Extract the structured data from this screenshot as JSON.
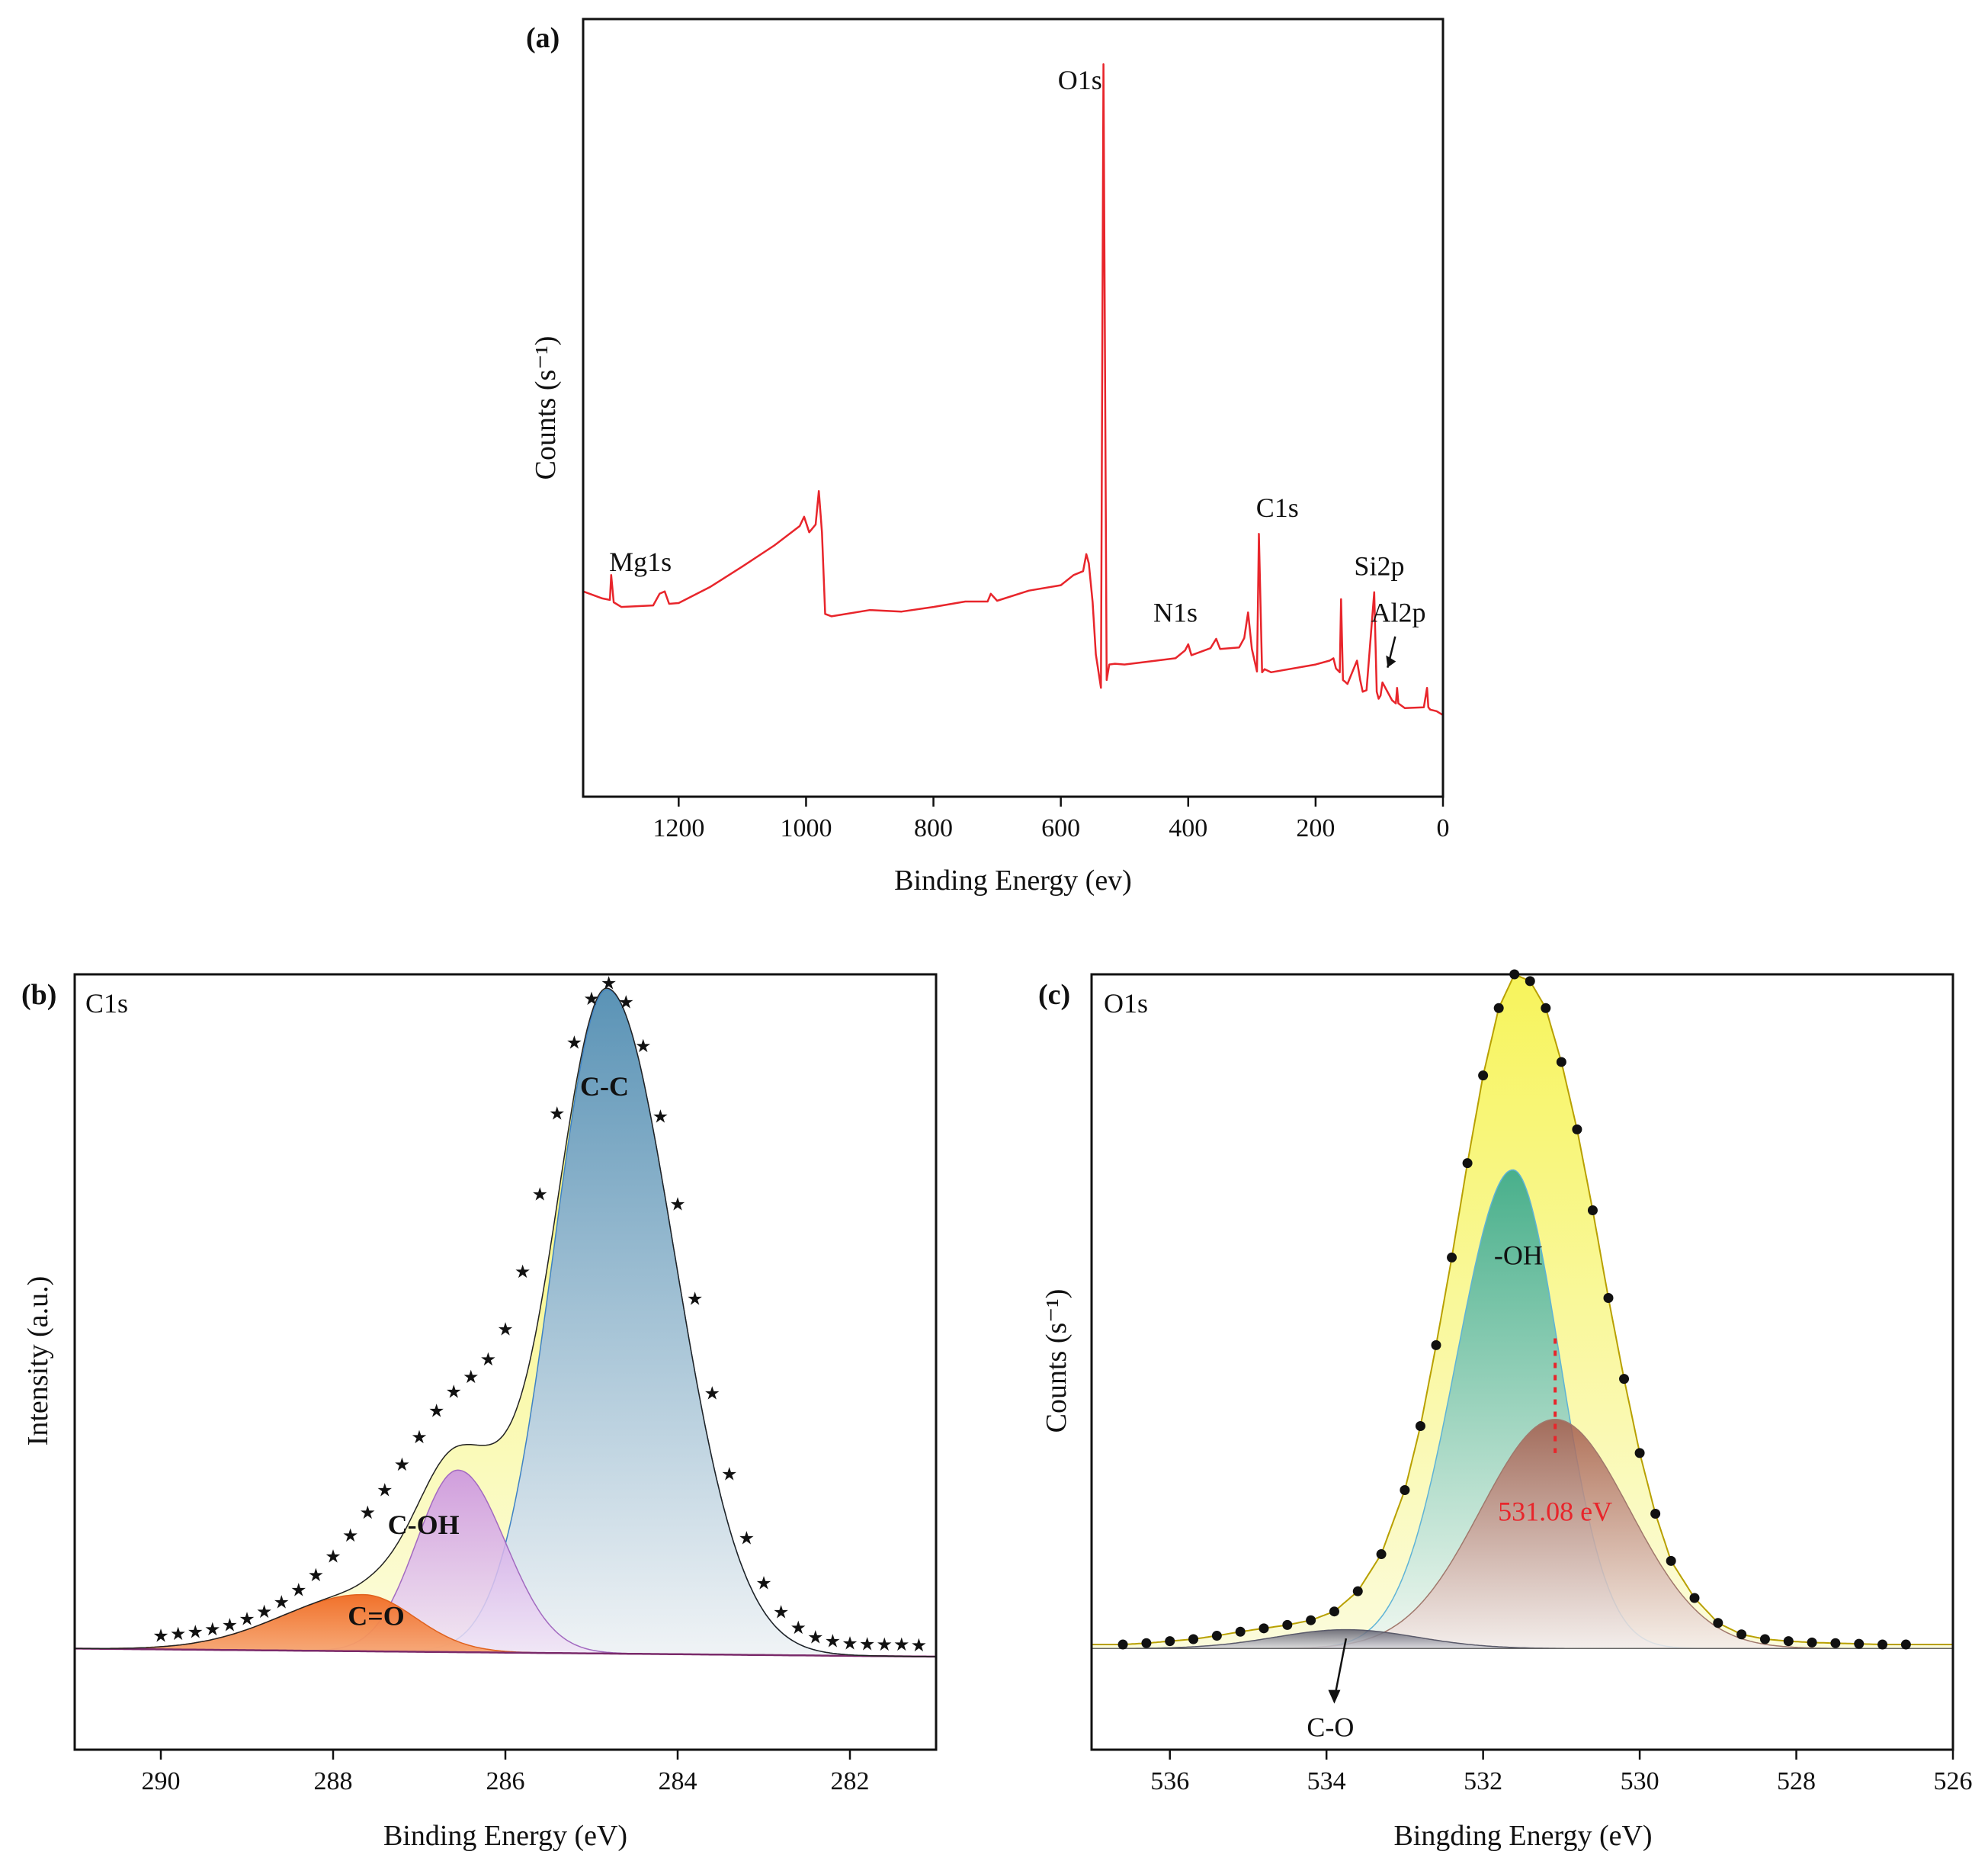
{
  "colors": {
    "survey_line": "#e8252b",
    "envelope_fill": "#f4f250",
    "cc_top": "#3f82c4",
    "coh_fill": "#c98ee2",
    "co_fill": "#f06a22",
    "oh_fill": "#2aa38d",
    "o531_fill": "#a35a4a",
    "co_o_fill": "#5a5a6a",
    "marker_red": "#e8252b"
  },
  "chart_data": [
    {
      "id": "a",
      "type": "line",
      "panel_label": "(a)",
      "xlabel": "Binding Energy (ev)",
      "ylabel": "Counts (s⁻¹)",
      "xlim": [
        1350,
        0
      ],
      "ylim": [
        0,
        100
      ],
      "xticks": [
        "1200",
        "1000",
        "800",
        "600",
        "400",
        "200",
        "0"
      ],
      "series": [
        {
          "name": "Survey",
          "x": [
            1350,
            1320,
            1308,
            1306,
            1302,
            1290,
            1240,
            1230,
            1222,
            1215,
            1200,
            1150,
            1100,
            1050,
            1010,
            1003,
            995,
            985,
            980,
            975,
            970,
            960,
            900,
            850,
            800,
            750,
            715,
            710,
            700,
            650,
            600,
            580,
            565,
            560,
            556,
            550,
            545,
            537,
            533,
            528,
            524,
            515,
            500,
            450,
            420,
            405,
            400,
            395,
            365,
            356,
            350,
            320,
            312,
            306,
            300,
            292,
            289,
            284,
            280,
            270,
            200,
            178,
            172,
            168,
            162,
            160,
            157,
            154,
            150,
            135,
            130,
            126,
            120,
            108,
            104,
            101,
            98,
            95,
            80,
            74,
            72,
            70,
            60,
            30,
            25,
            23,
            20,
            10,
            0
          ],
          "values": [
            26.4,
            25.5,
            25.3,
            28.5,
            25.0,
            24.4,
            24.6,
            26.1,
            26.4,
            24.8,
            24.9,
            27.0,
            29.6,
            32.3,
            34.8,
            36.0,
            34.0,
            35.0,
            39.3,
            34.0,
            23.5,
            23.2,
            24.0,
            23.8,
            24.4,
            25.1,
            25.1,
            26.1,
            25.2,
            26.5,
            27.2,
            28.5,
            29.0,
            31.2,
            30.0,
            25.0,
            18.3,
            14.0,
            94.2,
            15.0,
            17.0,
            17.1,
            17.0,
            17.5,
            17.8,
            18.8,
            19.6,
            18.2,
            19.1,
            20.3,
            19.0,
            19.2,
            20.4,
            23.7,
            19.0,
            16.1,
            33.8,
            16.0,
            16.4,
            16.0,
            17.0,
            17.5,
            17.8,
            16.5,
            16.0,
            25.4,
            15.0,
            14.8,
            14.5,
            17.5,
            15.0,
            13.5,
            13.7,
            26.3,
            13.5,
            12.6,
            13.0,
            14.7,
            12.4,
            12.0,
            14.0,
            12.0,
            11.4,
            11.5,
            14.0,
            11.5,
            11.2,
            11.0,
            10.5
          ]
        }
      ],
      "annotations": [
        {
          "text": "Mg1s",
          "x": 1260,
          "y": 29
        },
        {
          "text": "O1s",
          "x": 570,
          "y": 91
        },
        {
          "text": "C1s",
          "x": 260,
          "y": 36
        },
        {
          "text": "N1s",
          "x": 420,
          "y": 22.5
        },
        {
          "text": "Si2p",
          "x": 100,
          "y": 28.5
        },
        {
          "text": "Al2p",
          "x": 70,
          "y": 22.5
        }
      ]
    },
    {
      "id": "b",
      "type": "area",
      "panel_label": "(b)",
      "spectrum_label": "C1s",
      "xlabel": "Binding Energy (eV)",
      "ylabel": "Intensity (a.u.)",
      "xlim": [
        291,
        281
      ],
      "ylim": [
        -15,
        100
      ],
      "xticks": [
        "290",
        "288",
        "286",
        "284",
        "282"
      ],
      "baseline": {
        "x": [
          291,
          281
        ],
        "y": [
          0,
          -1.2
        ]
      },
      "components": [
        {
          "name": "C-C",
          "center": 284.82,
          "height": 98.5,
          "sigma_left": 0.62,
          "sigma_right": 0.78
        },
        {
          "name": "C-OH",
          "center": 286.55,
          "height": 27.0,
          "sigma_left": 0.48,
          "sigma_right": 0.55
        },
        {
          "name": "C=O",
          "center": 287.65,
          "height": 8.4,
          "sigma_left": 0.95,
          "sigma_right": 0.6
        }
      ],
      "points": {
        "x": [
          290.0,
          289.8,
          289.6,
          289.4,
          289.2,
          289.0,
          288.8,
          288.6,
          288.4,
          288.2,
          288.0,
          287.8,
          287.6,
          287.4,
          287.2,
          287.0,
          286.8,
          286.6,
          286.4,
          286.2,
          286.0,
          285.8,
          285.6,
          285.4,
          285.2,
          285.0,
          284.8,
          284.6,
          284.4,
          284.2,
          284.0,
          283.8,
          283.6,
          283.4,
          283.2,
          283.0,
          282.8,
          282.6,
          282.4,
          282.2,
          282.0,
          281.8,
          281.6,
          281.4,
          281.2
        ],
        "y": [
          2.0,
          2.3,
          2.6,
          3.0,
          3.6,
          4.5,
          5.6,
          7.0,
          8.8,
          11.0,
          13.8,
          16.9,
          20.3,
          23.6,
          27.4,
          31.5,
          35.4,
          38.2,
          40.4,
          43.0,
          47.5,
          56.0,
          67.5,
          79.5,
          90.0,
          96.5,
          98.8,
          96.0,
          89.5,
          79.0,
          66.0,
          52.0,
          38.0,
          26.0,
          16.5,
          9.8,
          5.5,
          3.2,
          1.8,
          1.2,
          0.9,
          0.8,
          0.7,
          0.7,
          0.6
        ]
      },
      "annotations": [
        {
          "text": "C-C",
          "x": 284.85,
          "y": 82
        },
        {
          "text": "C-OH",
          "x": 286.95,
          "y": 17
        },
        {
          "text": "C=O",
          "x": 287.5,
          "y": 3.5
        }
      ]
    },
    {
      "id": "c",
      "type": "area",
      "panel_label": "(c)",
      "spectrum_label": "O1s",
      "xlabel": "Bingding Energy  (eV)",
      "ylabel": "Counts (s⁻¹)",
      "xlim": [
        537,
        526
      ],
      "ylim": [
        -15,
        100
      ],
      "xticks": [
        "536",
        "534",
        "532",
        "530",
        "528",
        "526"
      ],
      "baseline": {
        "x": [
          537,
          526
        ],
        "y": [
          0,
          0
        ]
      },
      "components": [
        {
          "name": "-OH",
          "center": 531.62,
          "height": 71.0,
          "sigma_left": 0.72,
          "sigma_right": 0.6
        },
        {
          "name": "531.08 eV",
          "center": 531.08,
          "height": 34.0,
          "sigma_left": 0.95,
          "sigma_right": 0.95
        },
        {
          "name": "C-O",
          "center": 533.75,
          "height": 2.8,
          "sigma_left": 0.9,
          "sigma_right": 0.9
        }
      ],
      "points": {
        "x": [
          536.6,
          536.3,
          536.0,
          535.7,
          535.4,
          535.1,
          534.8,
          534.5,
          534.2,
          533.9,
          533.6,
          533.3,
          533.0,
          532.8,
          532.6,
          532.4,
          532.2,
          532.0,
          531.8,
          531.6,
          531.4,
          531.2,
          531.0,
          530.8,
          530.6,
          530.4,
          530.2,
          530.0,
          529.8,
          529.6,
          529.3,
          529.0,
          528.7,
          528.4,
          528.1,
          527.8,
          527.5,
          527.2,
          526.9,
          526.6
        ],
        "y": [
          0.6,
          0.8,
          1.1,
          1.4,
          1.9,
          2.5,
          3.0,
          3.5,
          4.2,
          5.5,
          8.5,
          14.0,
          23.5,
          33.0,
          45.0,
          58.0,
          72.0,
          85.0,
          95.0,
          100.0,
          99.0,
          95.0,
          87.0,
          77.0,
          65.0,
          52.0,
          40.0,
          29.0,
          20.0,
          13.0,
          7.5,
          3.8,
          2.1,
          1.4,
          1.1,
          0.9,
          0.8,
          0.7,
          0.6,
          0.6
        ]
      },
      "marker": {
        "text": "531.08 eV",
        "x": 531.08,
        "y_from": 29,
        "y_to": 46
      },
      "annotations": [
        {
          "text": "-OH",
          "x": 531.55,
          "y": 57
        },
        {
          "text": "531.08 eV",
          "x": 531.08,
          "y": 19
        },
        {
          "text": "C-O",
          "x": 533.95,
          "y": -13
        }
      ]
    }
  ]
}
